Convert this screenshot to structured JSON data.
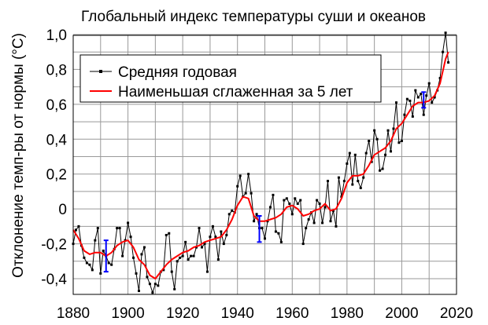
{
  "chart_data": {
    "type": "line",
    "title": "Глобальный индекс температуры суши и океанов",
    "xlabel": "",
    "ylabel": "Отклонение темп-ры от нормы (°C)",
    "xlim": [
      1880,
      2020
    ],
    "ylim": [
      -0.5,
      1.0
    ],
    "xticks": [
      1880,
      1900,
      1920,
      1940,
      1960,
      1980,
      2000,
      2020
    ],
    "yticks": [
      {
        "v": 1.0,
        "label": "1,0"
      },
      {
        "v": 0.8,
        "label": "0,8"
      },
      {
        "v": 0.6,
        "label": "0,6"
      },
      {
        "v": 0.4,
        "label": "0,4"
      },
      {
        "v": 0.2,
        "label": "0,2"
      },
      {
        "v": 0.0,
        "label": "0"
      },
      {
        "v": -0.2,
        "label": "-0,2"
      },
      {
        "v": -0.4,
        "label": "-0,4"
      }
    ],
    "grid": true,
    "legend_position": "top-left",
    "series": [
      {
        "name": "Средняя годовая",
        "color": "#000000",
        "marker": "square",
        "x": [
          1880,
          1881,
          1882,
          1883,
          1884,
          1885,
          1886,
          1887,
          1888,
          1889,
          1890,
          1891,
          1892,
          1893,
          1894,
          1895,
          1896,
          1897,
          1898,
          1899,
          1900,
          1901,
          1902,
          1903,
          1904,
          1905,
          1906,
          1907,
          1908,
          1909,
          1910,
          1911,
          1912,
          1913,
          1914,
          1915,
          1916,
          1917,
          1918,
          1919,
          1920,
          1921,
          1922,
          1923,
          1924,
          1925,
          1926,
          1927,
          1928,
          1929,
          1930,
          1931,
          1932,
          1933,
          1934,
          1935,
          1936,
          1937,
          1938,
          1939,
          1940,
          1941,
          1942,
          1943,
          1944,
          1945,
          1946,
          1947,
          1948,
          1949,
          1950,
          1951,
          1952,
          1953,
          1954,
          1955,
          1956,
          1957,
          1958,
          1959,
          1960,
          1961,
          1962,
          1963,
          1964,
          1965,
          1966,
          1967,
          1968,
          1969,
          1970,
          1971,
          1972,
          1973,
          1974,
          1975,
          1976,
          1977,
          1978,
          1979,
          1980,
          1981,
          1982,
          1983,
          1984,
          1985,
          1986,
          1987,
          1988,
          1989,
          1990,
          1991,
          1992,
          1993,
          1994,
          1995,
          1996,
          1997,
          1998,
          1999,
          2000,
          2001,
          2002,
          2003,
          2004,
          2005,
          2006,
          2007,
          2008,
          2009,
          2010,
          2011,
          2012,
          2013,
          2014,
          2015,
          2016,
          2017
        ],
        "y": [
          -0.2,
          -0.12,
          -0.1,
          -0.21,
          -0.28,
          -0.31,
          -0.32,
          -0.35,
          -0.18,
          -0.11,
          -0.37,
          -0.24,
          -0.27,
          -0.31,
          -0.32,
          -0.23,
          -0.11,
          -0.11,
          -0.27,
          -0.18,
          -0.08,
          -0.16,
          -0.28,
          -0.37,
          -0.47,
          -0.26,
          -0.22,
          -0.39,
          -0.43,
          -0.48,
          -0.43,
          -0.44,
          -0.36,
          -0.35,
          -0.15,
          -0.14,
          -0.36,
          -0.46,
          -0.3,
          -0.28,
          -0.27,
          -0.19,
          -0.29,
          -0.27,
          -0.27,
          -0.22,
          -0.11,
          -0.22,
          -0.2,
          -0.36,
          -0.16,
          -0.1,
          -0.16,
          -0.29,
          -0.13,
          -0.2,
          -0.15,
          -0.03,
          -0.01,
          -0.02,
          0.13,
          0.19,
          0.07,
          0.09,
          0.2,
          0.09,
          -0.07,
          -0.03,
          -0.11,
          -0.11,
          -0.17,
          -0.07,
          0.01,
          0.08,
          -0.13,
          -0.14,
          -0.19,
          0.05,
          0.06,
          0.03,
          -0.03,
          0.06,
          0.03,
          0.05,
          -0.2,
          -0.11,
          -0.06,
          -0.02,
          -0.08,
          0.05,
          0.03,
          -0.08,
          0.01,
          0.16,
          -0.07,
          -0.01,
          -0.1,
          0.18,
          0.07,
          0.16,
          0.26,
          0.32,
          0.14,
          0.31,
          0.16,
          0.12,
          0.18,
          0.32,
          0.39,
          0.27,
          0.45,
          0.4,
          0.22,
          0.23,
          0.31,
          0.45,
          0.33,
          0.46,
          0.61,
          0.38,
          0.39,
          0.54,
          0.63,
          0.62,
          0.53,
          0.68,
          0.64,
          0.66,
          0.54,
          0.65,
          0.72,
          0.61,
          0.64,
          0.68,
          0.75,
          0.9,
          1.01,
          0.84
        ]
      },
      {
        "name": "Наименьшая сглаженная за 5 лет",
        "color": "#ff0000",
        "x": [
          1880,
          1882,
          1884,
          1886,
          1888,
          1890,
          1892,
          1894,
          1896,
          1898,
          1900,
          1902,
          1904,
          1906,
          1908,
          1910,
          1912,
          1914,
          1916,
          1918,
          1920,
          1922,
          1924,
          1926,
          1928,
          1930,
          1932,
          1934,
          1936,
          1938,
          1940,
          1942,
          1944,
          1946,
          1948,
          1950,
          1952,
          1954,
          1956,
          1958,
          1960,
          1962,
          1964,
          1966,
          1968,
          1970,
          1972,
          1974,
          1976,
          1978,
          1980,
          1982,
          1984,
          1986,
          1988,
          1990,
          1992,
          1994,
          1996,
          1998,
          2000,
          2002,
          2004,
          2006,
          2008,
          2010,
          2012,
          2014,
          2016,
          2017
        ],
        "y": [
          -0.12,
          -0.17,
          -0.24,
          -0.26,
          -0.25,
          -0.25,
          -0.27,
          -0.25,
          -0.21,
          -0.19,
          -0.18,
          -0.22,
          -0.29,
          -0.32,
          -0.38,
          -0.4,
          -0.36,
          -0.32,
          -0.29,
          -0.27,
          -0.25,
          -0.24,
          -0.22,
          -0.21,
          -0.19,
          -0.18,
          -0.17,
          -0.16,
          -0.12,
          -0.06,
          0.02,
          0.07,
          0.06,
          -0.04,
          -0.07,
          -0.07,
          -0.06,
          -0.05,
          -0.03,
          0.01,
          0.02,
          0.0,
          -0.04,
          -0.03,
          -0.01,
          0.0,
          0.03,
          -0.01,
          0.0,
          0.06,
          0.15,
          0.19,
          0.19,
          0.2,
          0.25,
          0.31,
          0.33,
          0.35,
          0.39,
          0.46,
          0.49,
          0.54,
          0.59,
          0.61,
          0.61,
          0.62,
          0.65,
          0.72,
          0.86,
          0.9
        ]
      }
    ],
    "error_bars": [
      {
        "x": 1892,
        "low": -0.36,
        "high": -0.18,
        "color": "#0000ff"
      },
      {
        "x": 1948,
        "low": -0.19,
        "high": -0.04,
        "color": "#0000ff"
      },
      {
        "x": 2008,
        "low": 0.58,
        "high": 0.67,
        "color": "#0000ff"
      }
    ]
  }
}
